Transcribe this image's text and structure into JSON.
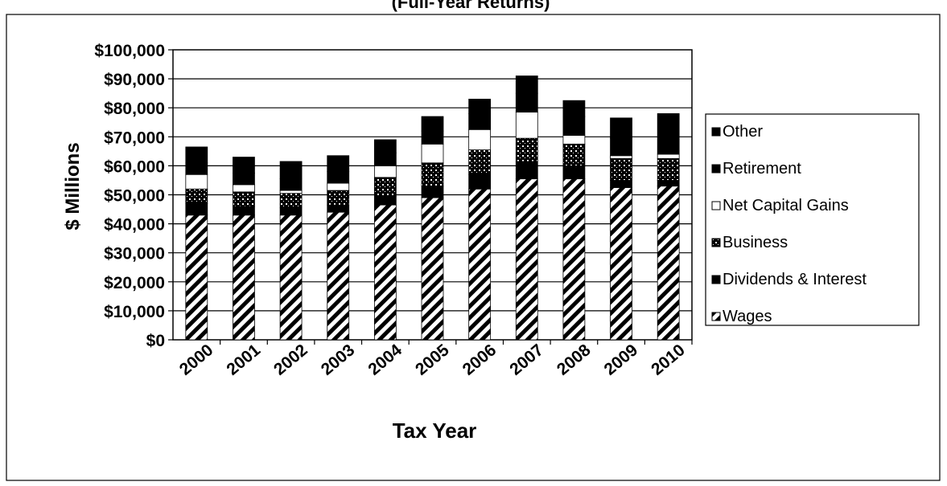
{
  "colors": {
    "ink": "#000000",
    "paper": "#ffffff"
  },
  "chart_data": {
    "type": "bar",
    "stacked": true,
    "title": "(Full-Year Returns)",
    "xlabel": "Tax Year",
    "ylabel": "$ Millions",
    "ylim": [
      0,
      100000
    ],
    "yticks": [
      "$0",
      "$10,000",
      "$20,000",
      "$30,000",
      "$40,000",
      "$50,000",
      "$60,000",
      "$70,000",
      "$80,000",
      "$90,000",
      "$100,000"
    ],
    "categories": [
      "2000",
      "2001",
      "2002",
      "2003",
      "2004",
      "2005",
      "2006",
      "2007",
      "2008",
      "2009",
      "2010"
    ],
    "grid": true,
    "legend_position": "right",
    "series": [
      {
        "name": "Wages",
        "pattern": "hatch",
        "values": [
          43000,
          43000,
          43000,
          44000,
          46500,
          49000,
          52000,
          55500,
          55500,
          52500,
          53000
        ]
      },
      {
        "name": "Dividends & Interest",
        "pattern": "solid",
        "values": [
          4000,
          3000,
          2500,
          2500,
          3000,
          4000,
          5000,
          6000,
          4500,
          2500,
          2000
        ]
      },
      {
        "name": "Business",
        "pattern": "dots",
        "values": [
          5000,
          5000,
          5000,
          5000,
          6500,
          8000,
          8500,
          8000,
          7500,
          7500,
          7500
        ]
      },
      {
        "name": "Net Capital Gains",
        "pattern": "white",
        "values": [
          5000,
          2500,
          1000,
          2500,
          4000,
          6500,
          7000,
          9000,
          3000,
          1000,
          1500
        ]
      },
      {
        "name": "Retirement",
        "pattern": "solid",
        "values": [
          4000,
          4000,
          4000,
          4000,
          4500,
          4500,
          5500,
          6500,
          6500,
          6000,
          6000
        ]
      },
      {
        "name": "Other",
        "pattern": "solid",
        "values": [
          5500,
          5500,
          6000,
          5500,
          4500,
          5000,
          5000,
          6000,
          5500,
          7000,
          8000
        ]
      }
    ],
    "legend_order": [
      "Other",
      "Retirement",
      "Net Capital Gains",
      "Business",
      "Dividends & Interest",
      "Wages"
    ]
  }
}
